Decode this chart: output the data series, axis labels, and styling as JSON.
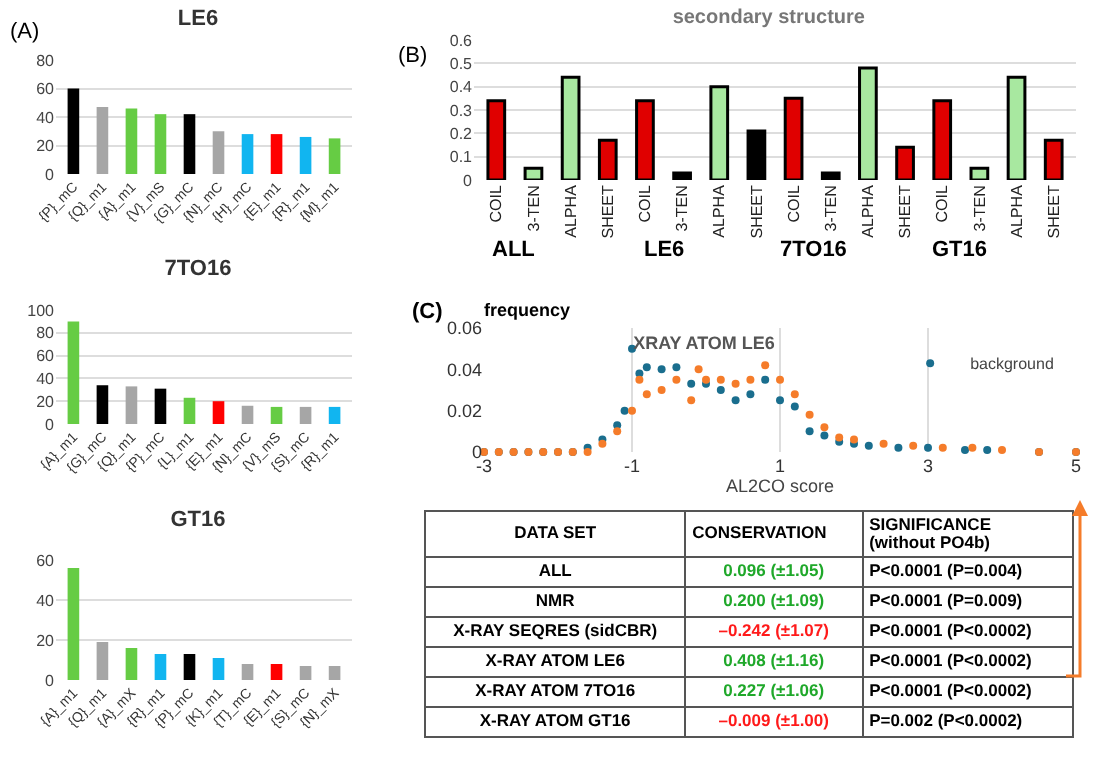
{
  "chart_data": [
    {
      "type": "bar",
      "title": "LE6",
      "annotations": [
        "(A)"
      ],
      "categories": [
        "{P}_mC",
        "{Q}_m1",
        "{A}_m1",
        "{V}_mS",
        "{G}_mC",
        "{N}_mC",
        "{H}_mC",
        "{E}_m1",
        "{R}_m1",
        "{M}_m1"
      ],
      "values": [
        60,
        47,
        46,
        42,
        42,
        30,
        28,
        28,
        26,
        25
      ],
      "colors": [
        "#000000",
        "#a6a6a6",
        "#66cc44",
        "#66cc44",
        "#000000",
        "#a6a6a6",
        "#11b5f0",
        "#ff0000",
        "#11b5f0",
        "#66cc44"
      ],
      "ylim": [
        0,
        80
      ],
      "yticks": [
        0,
        20,
        40,
        60,
        80
      ],
      "grid": "y"
    },
    {
      "type": "bar",
      "title": "7TO16",
      "categories": [
        "{A}_m1",
        "{G}_mC",
        "{Q}_m1",
        "{P}_mC",
        "{L}_m1",
        "{E}_m1",
        "{N}_mC",
        "{V}_mS",
        "{S}_mC",
        "{R}_m1"
      ],
      "values": [
        90,
        34,
        33,
        31,
        23,
        20,
        16,
        15,
        15,
        15
      ],
      "colors": [
        "#66cc44",
        "#000000",
        "#a6a6a6",
        "#000000",
        "#66cc44",
        "#ff0000",
        "#a6a6a6",
        "#66cc44",
        "#a6a6a6",
        "#11b5f0"
      ],
      "ylim": [
        0,
        100
      ],
      "yticks": [
        0,
        20,
        40,
        60,
        80,
        100
      ],
      "grid": "y"
    },
    {
      "type": "bar",
      "title": "GT16",
      "categories": [
        "{A}_m1",
        "{Q}_m1",
        "{A}_mX",
        "{R}_m1",
        "{P}_mC",
        "{K}_m1",
        "{T}_mC",
        "{E}_m1",
        "{S}_mC",
        "{N}_mX"
      ],
      "values": [
        56,
        19,
        16,
        13,
        13,
        11,
        8,
        8,
        7,
        7
      ],
      "colors": [
        "#66cc44",
        "#a6a6a6",
        "#66cc44",
        "#11b5f0",
        "#000000",
        "#11b5f0",
        "#a6a6a6",
        "#ff0000",
        "#a6a6a6",
        "#a6a6a6"
      ],
      "ylim": [
        0,
        60
      ],
      "yticks": [
        0,
        20,
        40,
        60
      ],
      "grid": "y"
    },
    {
      "type": "bar",
      "title": "secondary structure",
      "annotations": [
        "(B)",
        "ALL",
        "LE6",
        "7TO16",
        "GT16"
      ],
      "categories": [
        "COIL",
        "3-TEN",
        "ALPHA",
        "SHEET",
        "COIL",
        "3-TEN",
        "ALPHA",
        "SHEET",
        "COIL",
        "3-TEN",
        "ALPHA",
        "SHEET",
        "COIL",
        "3-TEN",
        "ALPHA",
        "SHEET"
      ],
      "values": [
        0.34,
        0.05,
        0.44,
        0.17,
        0.34,
        0.03,
        0.4,
        0.21,
        0.35,
        0.03,
        0.48,
        0.14,
        0.34,
        0.05,
        0.44,
        0.17
      ],
      "colors": [
        "#e00000",
        "#a8e8a0",
        "#a8e8a0",
        "#e00000",
        "#e00000",
        "#000000",
        "#a8e8a0",
        "#000000",
        "#e00000",
        "#000000",
        "#a8e8a0",
        "#e00000",
        "#e00000",
        "#a8e8a0",
        "#a8e8a0",
        "#e00000"
      ],
      "ylim": [
        0,
        0.6
      ],
      "yticks": [
        0,
        0.1,
        0.2,
        0.3,
        0.4,
        0.5,
        0.6
      ],
      "grid": "y"
    },
    {
      "type": "scatter",
      "title": "XRAY ATOM LE6",
      "annotations": [
        "(C)"
      ],
      "ylabel": "frequency",
      "xlabel": "AL2CO score",
      "marker": "circle",
      "legend": "top right",
      "grid": "x",
      "xlim": [
        -3,
        5
      ],
      "xticks": [
        -3,
        -1,
        1,
        3,
        5
      ],
      "ylim": [
        0,
        0.06
      ],
      "yticks": [
        0,
        {
          "value": 0.02,
          "label": "0.02"
        },
        {
          "value": 0.04,
          "label": "0.04"
        },
        {
          "value": 0.06,
          "label": "0.06"
        }
      ],
      "series": [
        {
          "name": "background",
          "color": "#1a6e8e",
          "x": [
            -3,
            -2.8,
            -2.6,
            -2.4,
            -2.2,
            -2,
            -1.8,
            -1.6,
            -1.4,
            -1.2,
            -1.1,
            -1,
            -0.9,
            -0.8,
            -0.6,
            -0.4,
            -0.2,
            0,
            0.2,
            0.4,
            0.6,
            0.8,
            1,
            1.2,
            1.4,
            1.6,
            1.8,
            2,
            2.2,
            2.6,
            3,
            3.5,
            3.8,
            4.5,
            5
          ],
          "values": [
            0,
            0,
            0,
            0,
            0,
            0,
            0,
            0.002,
            0.006,
            0.013,
            0.02,
            0.05,
            0.038,
            0.041,
            0.04,
            0.041,
            0.033,
            0.033,
            0.03,
            0.025,
            0.028,
            0.035,
            0.025,
            0.022,
            0.01,
            0.008,
            0.005,
            0.004,
            0.003,
            0.002,
            0.002,
            0.001,
            0.001,
            0,
            0
          ]
        },
        {
          "color": "#f57c2a",
          "x": [
            -3,
            -2.8,
            -2.6,
            -2.4,
            -2.2,
            -2,
            -1.8,
            -1.6,
            -1.4,
            -1.2,
            -1,
            -0.9,
            -0.8,
            -0.6,
            -0.4,
            -0.2,
            -0.1,
            0,
            0.2,
            0.4,
            0.6,
            0.8,
            1,
            1.2,
            1.4,
            1.6,
            1.8,
            2,
            2.4,
            2.8,
            3.2,
            3.6,
            4,
            4.5,
            5
          ],
          "values": [
            0,
            0,
            0,
            0,
            0,
            0,
            0,
            0,
            0.004,
            0.01,
            0.02,
            0.035,
            0.028,
            0.03,
            0.035,
            0.025,
            0.04,
            0.035,
            0.035,
            0.033,
            0.035,
            0.042,
            0.035,
            0.028,
            0.018,
            0.012,
            0.007,
            0.006,
            0.004,
            0.003,
            0.002,
            0.002,
            0.001,
            0,
            0
          ]
        }
      ]
    },
    {
      "type": "other",
      "annotations": [
        "DATA SET",
        "CONSERVATION",
        "SIGNIFICANCE\n(without PO4b)",
        "ALL",
        "0.096 (±1.05)",
        "P<0.0001 (P=0.004)",
        "NMR",
        "0.200 (±1.09)",
        "P<0.0001 (P=0.009)",
        "X-RAY SEQRES (sidCBR)",
        "–0.242 (±1.07)",
        "P<0.0001 (P<0.0002)",
        "X-RAY ATOM LE6",
        "0.408 (±1.16)",
        "P<0.0001 (P<0.0002)",
        "X-RAY ATOM 7TO16",
        "0.227 (±1.06)",
        "P<0.0001 (P<0.0002)",
        "X-RAY ATOM GT16",
        "–0.009 (±1.00)",
        "P=0.002 (P<0.0002)"
      ],
      "colors": [
        "#000000",
        "#000000",
        "#000000",
        "#000000",
        "#1fa82a",
        "#000000",
        "#000000",
        "#1fa82a",
        "#000000",
        "#000000",
        "#ff1a1a",
        "#000000",
        "#000000",
        "#1fa82a",
        "#000000",
        "#000000",
        "#1fa82a",
        "#000000",
        "#000000",
        "#ff1a1a",
        "#000000"
      ]
    }
  ]
}
